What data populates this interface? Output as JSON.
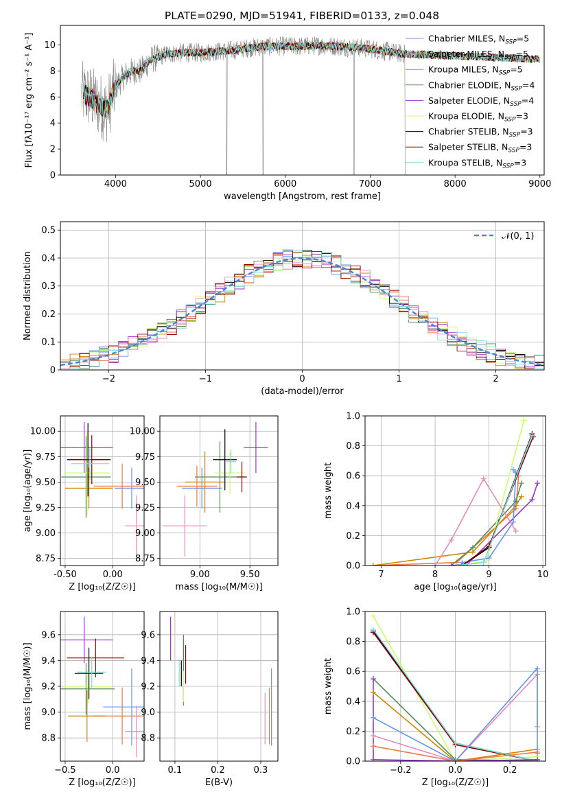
{
  "colors": [
    "#6495ed",
    "#ee7942",
    "#cd8500",
    "#548b54",
    "#9a32cd",
    "#caff70",
    "#000000",
    "#8b0000",
    "#7fdbdb",
    "#808080",
    "#e58ab8"
  ],
  "chart_data": [
    {
      "id": "spectrum",
      "type": "line",
      "title": "PLATE=0290, MJD=51941, FIBERID=0133, z=0.048",
      "xlabel": "wavelength [Angstrom, rest frame]",
      "ylabel": "Flux [fλ10⁻¹⁷ erg cm⁻² s⁻¹ A⁻¹]",
      "xlim": [
        3350,
        9050
      ],
      "ylim": [
        0,
        11.5
      ],
      "xticks": [
        4000,
        5000,
        6000,
        7000,
        8000,
        9000
      ],
      "yticks": [
        0,
        2,
        4,
        6,
        8,
        10
      ],
      "legend_position": "right",
      "legend": [
        {
          "label": "Chabrier MILES, N",
          "sub": "SSP",
          "eq": "=5",
          "color": "#6495ed"
        },
        {
          "label": "Salpeter MILES, N",
          "sub": "SSP",
          "eq": "=5",
          "color": "#ee7942"
        },
        {
          "label": "Kroupa MILES, N",
          "sub": "SSP",
          "eq": "=5",
          "color": "#cd8500"
        },
        {
          "label": "Chabrier ELODIE, N",
          "sub": "SSP",
          "eq": "=4",
          "color": "#548b54"
        },
        {
          "label": "Salpeter ELODIE, N",
          "sub": "SSP",
          "eq": "=4",
          "color": "#9a32cd"
        },
        {
          "label": "Kroupa ELODIE, N",
          "sub": "SSP",
          "eq": "=3",
          "color": "#caff70"
        },
        {
          "label": "Chabrier STELIB, N",
          "sub": "SSP",
          "eq": "=3",
          "color": "#000000"
        },
        {
          "label": "Salpeter STELIB, N",
          "sub": "SSP",
          "eq": "=3",
          "color": "#8b0000"
        },
        {
          "label": "Kroupa STELIB, N",
          "sub": "SSP",
          "eq": "=3",
          "color": "#7fdbdb"
        }
      ],
      "observed_color": "#808080",
      "continuum": {
        "wavelength": [
          3620,
          3700,
          3800,
          3900,
          4000,
          4100,
          4200,
          4300,
          4400,
          4600,
          4800,
          5000,
          5200,
          5400,
          5600,
          5800,
          6000,
          6200,
          6400,
          6600,
          6800,
          7000,
          7200,
          7400
        ],
        "flux": [
          6.2,
          6.0,
          5.4,
          5.0,
          6.8,
          7.6,
          8.0,
          8.0,
          8.8,
          9.3,
          9.4,
          9.4,
          9.5,
          9.6,
          9.8,
          9.9,
          9.9,
          9.9,
          9.95,
          9.9,
          9.8,
          9.7,
          9.5,
          9.3
        ]
      },
      "obs_range": [
        3600,
        7420
      ],
      "model_range": [
        3620,
        9000
      ]
    },
    {
      "id": "residuals",
      "type": "area",
      "xlabel": "(data-model)/error",
      "ylabel": "Normed distribution",
      "xlim": [
        -2.5,
        2.5
      ],
      "ylim": [
        0,
        0.53
      ],
      "xticks": [
        -2,
        -1,
        0,
        1,
        2
      ],
      "yticks": [
        0,
        0.1,
        0.2,
        0.3,
        0.4,
        0.5
      ],
      "bin_width": 0.1,
      "reference": {
        "label": "𝒩(0, 1)",
        "color": "#4a86d8"
      },
      "legend_position": "top-right"
    },
    {
      "id": "age-vs-Z",
      "type": "scatter",
      "xlabel": "Z [log₁₀(Z/Z☉)]",
      "ylabel": "age  [log₁₀(age/yr)]",
      "xlim": [
        -0.55,
        0.33
      ],
      "ylim": [
        8.68,
        10.15
      ],
      "xticks": [
        -0.5,
        0.0
      ],
      "yticks": [
        8.75,
        9.0,
        9.25,
        9.5,
        9.75,
        10.0
      ],
      "points": [
        {
          "x": 0.2,
          "y": 9.44,
          "xerr": 0.18,
          "yerr": 0.2,
          "c": 0
        },
        {
          "x": 0.1,
          "y": 9.46,
          "xerr": 0.3,
          "yerr": 0.22,
          "c": 1
        },
        {
          "x": 0.25,
          "y": 9.07,
          "xerr": 0.12,
          "yerr": 0.3,
          "c": 10
        },
        {
          "x": -0.25,
          "y": 9.44,
          "xerr": 0.25,
          "yerr": 0.2,
          "c": 2
        },
        {
          "x": -0.28,
          "y": 9.55,
          "xerr": 0.26,
          "yerr": 0.4,
          "c": 3
        },
        {
          "x": -0.3,
          "y": 9.84,
          "xerr": 0.3,
          "yerr": 0.25,
          "c": 4
        },
        {
          "x": -0.27,
          "y": 9.59,
          "xerr": 0.24,
          "yerr": 0.42,
          "c": 5
        },
        {
          "x": -0.26,
          "y": 9.72,
          "xerr": 0.22,
          "yerr": 0.36,
          "c": 6
        },
        {
          "x": -0.22,
          "y": 9.72,
          "xerr": 0.2,
          "yerr": 0.24,
          "c": 7
        },
        {
          "x": -0.24,
          "y": 9.68,
          "xerr": 0.2,
          "yerr": 0.16,
          "c": 8
        }
      ]
    },
    {
      "id": "age-vs-mass",
      "type": "scatter",
      "xlabel": "mass [log₁₀(M/M☉)]",
      "ylabel": "",
      "xlim": [
        8.6,
        9.78
      ],
      "ylim": [
        8.68,
        10.15
      ],
      "xticks": [
        9.0,
        9.5
      ],
      "yticks": [
        8.75,
        9.0,
        9.25,
        9.5,
        9.75,
        10.0
      ],
      "points": [
        {
          "x": 9.02,
          "y": 9.44,
          "xerr": 0.2,
          "yerr": 0.2,
          "c": 0
        },
        {
          "x": 8.97,
          "y": 9.46,
          "xerr": 0.2,
          "yerr": 0.2,
          "c": 1
        },
        {
          "x": 8.85,
          "y": 9.07,
          "xerr": 0.22,
          "yerr": 0.3,
          "c": 10
        },
        {
          "x": 9.05,
          "y": 9.5,
          "xerr": 0.2,
          "yerr": 0.3,
          "c": 2
        },
        {
          "x": 9.2,
          "y": 9.55,
          "xerr": 0.25,
          "yerr": 0.35,
          "c": 3
        },
        {
          "x": 9.56,
          "y": 9.84,
          "xerr": 0.12,
          "yerr": 0.25,
          "c": 4
        },
        {
          "x": 9.3,
          "y": 9.59,
          "xerr": 0.15,
          "yerr": 0.2,
          "c": 5
        },
        {
          "x": 9.25,
          "y": 9.72,
          "xerr": 0.12,
          "yerr": 0.3,
          "c": 6
        },
        {
          "x": 9.42,
          "y": 9.55,
          "xerr": 0.05,
          "yerr": 0.15,
          "c": 7
        },
        {
          "x": 9.31,
          "y": 9.7,
          "xerr": 0.05,
          "yerr": 0.12,
          "c": 8
        }
      ]
    },
    {
      "id": "weight-vs-age",
      "type": "line",
      "xlabel": "age  [log₁₀(age/yr)]",
      "ylabel": "mass weight",
      "xlim": [
        6.7,
        10.05
      ],
      "ylim": [
        0,
        1.0
      ],
      "xticks": [
        7,
        8,
        9,
        10
      ],
      "yticks": [
        0,
        0.2,
        0.4,
        0.6,
        0.8,
        1.0
      ],
      "series": [
        {
          "c": 1,
          "x": [
            6.85,
            8.4,
            9.5,
            9.55
          ],
          "y": [
            0.0,
            0.02,
            0.38,
            0.6
          ]
        },
        {
          "c": 2,
          "x": [
            6.85,
            8.7,
            9.5,
            9.6
          ],
          "y": [
            0.0,
            0.09,
            0.4,
            0.46
          ]
        },
        {
          "c": 3,
          "x": [
            8.3,
            8.7,
            9.5,
            9.6
          ],
          "y": [
            0.0,
            0.12,
            0.43,
            0.55
          ]
        },
        {
          "c": 4,
          "x": [
            8.3,
            8.6,
            9.8,
            9.9
          ],
          "y": [
            0.0,
            0.01,
            0.44,
            0.55
          ]
        },
        {
          "c": 5,
          "x": [
            8.4,
            8.95,
            9.65
          ],
          "y": [
            0.0,
            0.03,
            0.97
          ]
        },
        {
          "c": 0,
          "x": [
            8.5,
            9.0,
            9.45,
            9.5,
            9.45
          ],
          "y": [
            0.02,
            0.05,
            0.29,
            0.62,
            0.64
          ]
        },
        {
          "c": 6,
          "x": [
            8.5,
            9.0,
            9.8
          ],
          "y": [
            0.0,
            0.12,
            0.88
          ]
        },
        {
          "c": 7,
          "x": [
            8.5,
            9.0,
            9.82
          ],
          "y": [
            0.0,
            0.13,
            0.86
          ]
        },
        {
          "c": 8,
          "x": [
            8.4,
            8.9,
            9.8
          ],
          "y": [
            0.0,
            0.02,
            0.87
          ]
        },
        {
          "c": 10,
          "x": [
            8.0,
            8.3,
            8.9,
            9.5
          ],
          "y": [
            0.0,
            0.17,
            0.58,
            0.23
          ]
        }
      ]
    },
    {
      "id": "mass-vs-Z",
      "type": "scatter",
      "xlabel": "Z [log₁₀(Z/Z☉)]",
      "ylabel": "mass [log₁₀(M/M☉)]",
      "xlim": [
        -0.55,
        0.33
      ],
      "ylim": [
        8.62,
        9.78
      ],
      "xticks": [
        -0.5,
        0.0
      ],
      "yticks": [
        8.8,
        9.0,
        9.2,
        9.4,
        9.6
      ],
      "points": [
        {
          "x": 0.2,
          "y": 9.04,
          "xerr": 0.3,
          "yerr": 0.3,
          "c": 0
        },
        {
          "x": 0.1,
          "y": 8.97,
          "xerr": 0.3,
          "yerr": 0.22,
          "c": 1
        },
        {
          "x": 0.25,
          "y": 8.85,
          "xerr": 0.12,
          "yerr": 0.2,
          "c": 10
        },
        {
          "x": -0.27,
          "y": 8.97,
          "xerr": 0.2,
          "yerr": 0.2,
          "c": 2
        },
        {
          "x": -0.28,
          "y": 9.18,
          "xerr": 0.3,
          "yerr": 0.2,
          "c": 3
        },
        {
          "x": -0.3,
          "y": 9.56,
          "xerr": 0.3,
          "yerr": 0.18,
          "c": 4
        },
        {
          "x": -0.26,
          "y": 9.2,
          "xerr": 0.26,
          "yerr": 0.13,
          "c": 5
        },
        {
          "x": -0.25,
          "y": 9.3,
          "xerr": 0.15,
          "yerr": 0.2,
          "c": 6
        },
        {
          "x": -0.18,
          "y": 9.42,
          "xerr": 0.3,
          "yerr": 0.15,
          "c": 7
        },
        {
          "x": -0.22,
          "y": 9.31,
          "xerr": 0.15,
          "yerr": 0.12,
          "c": 8
        }
      ]
    },
    {
      "id": "mass-vs-ebv",
      "type": "scatter",
      "xlabel": "E(B-V)",
      "ylabel": "",
      "xlim": [
        0.065,
        0.34
      ],
      "ylim": [
        8.62,
        9.78
      ],
      "xticks": [
        0.1,
        0.2,
        0.3
      ],
      "yticks": [
        8.8,
        9.0,
        9.2,
        9.4,
        9.6
      ],
      "points": [
        {
          "x": 0.325,
          "y": 9.04,
          "xerr": 0.0,
          "yerr": 0.3,
          "c": 0
        },
        {
          "x": 0.32,
          "y": 8.97,
          "xerr": 0.0,
          "yerr": 0.22,
          "c": 1
        },
        {
          "x": 0.31,
          "y": 8.95,
          "xerr": 0.0,
          "yerr": 0.2,
          "c": 10
        },
        {
          "x": 0.12,
          "y": 9.3,
          "xerr": 0.0,
          "yerr": 0.25,
          "c": 2
        },
        {
          "x": 0.12,
          "y": 9.35,
          "xerr": 0.0,
          "yerr": 0.25,
          "c": 3
        },
        {
          "x": 0.09,
          "y": 9.57,
          "xerr": 0.0,
          "yerr": 0.17,
          "c": 4
        },
        {
          "x": 0.12,
          "y": 9.2,
          "xerr": 0.0,
          "yerr": 0.12,
          "c": 5
        },
        {
          "x": 0.115,
          "y": 9.3,
          "xerr": 0.0,
          "yerr": 0.1,
          "c": 6
        },
        {
          "x": 0.125,
          "y": 9.37,
          "xerr": 0.0,
          "yerr": 0.15,
          "c": 7
        },
        {
          "x": 0.11,
          "y": 9.3,
          "xerr": 0.0,
          "yerr": 0.1,
          "c": 8
        }
      ]
    },
    {
      "id": "weight-vs-Z",
      "type": "line",
      "xlabel": "Z [log₁₀(Z/Z☉)]",
      "ylabel": "mass weight",
      "xlim": [
        -0.33,
        0.33
      ],
      "ylim": [
        0,
        1.0
      ],
      "xticks": [
        -0.2,
        0.0,
        0.2
      ],
      "yticks": [
        0,
        0.2,
        0.4,
        0.6,
        0.8,
        1.0
      ],
      "series": [
        {
          "c": 5,
          "x": [
            -0.3,
            0.0,
            0.3
          ],
          "y": [
            0.97,
            0.0,
            0.03
          ]
        },
        {
          "c": 6,
          "x": [
            -0.3,
            0.0,
            0.3
          ],
          "y": [
            0.87,
            0.12,
            0.0
          ]
        },
        {
          "c": 7,
          "x": [
            -0.3,
            0.0,
            0.3
          ],
          "y": [
            0.86,
            0.11,
            0.0
          ]
        },
        {
          "c": 8,
          "x": [
            -0.3,
            0.0,
            0.3
          ],
          "y": [
            0.88,
            0.12,
            0.0
          ]
        },
        {
          "c": 3,
          "x": [
            -0.3,
            0.0,
            0.3
          ],
          "y": [
            0.55,
            0.01,
            0.0
          ]
        },
        {
          "c": 4,
          "x": [
            -0.3,
            -0.3,
            0.0,
            0.3
          ],
          "y": [
            0.55,
            0.01,
            0.0,
            0.01
          ]
        },
        {
          "c": 2,
          "x": [
            -0.3,
            0.0,
            0.3
          ],
          "y": [
            0.46,
            0.0,
            0.08
          ]
        },
        {
          "c": 1,
          "x": [
            -0.3,
            0.0,
            0.3
          ],
          "y": [
            0.1,
            0.0,
            0.06
          ]
        },
        {
          "c": 10,
          "x": [
            -0.3,
            0.0,
            0.3,
            0.3
          ],
          "y": [
            0.17,
            0.0,
            0.58,
            0.23
          ]
        },
        {
          "c": 0,
          "x": [
            -0.3,
            0.0,
            0.3,
            0.3
          ],
          "y": [
            0.29,
            0.0,
            0.62,
            0.05
          ]
        }
      ]
    }
  ]
}
